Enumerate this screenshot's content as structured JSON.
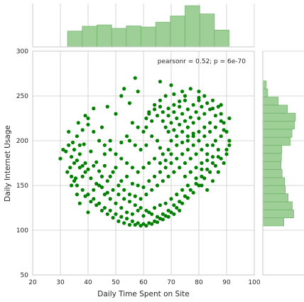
{
  "chart_data": {
    "type": "scatter",
    "title": "",
    "xlabel": "Daily Time Spent on Site",
    "ylabel": "Daily Internet Usage",
    "xlim": [
      20,
      100
    ],
    "ylim": [
      50,
      300
    ],
    "xticks": [
      20,
      30,
      40,
      50,
      60,
      70,
      80,
      90,
      100
    ],
    "yticks": [
      50,
      100,
      150,
      200,
      250,
      300
    ],
    "grid": true,
    "annotation": "pearsonr = 0.52; p = 6e-70",
    "colors": {
      "points": "#008000",
      "hist_fill": "#9dcf97",
      "hist_edge": "#6fb268",
      "grid": "#cccccc",
      "axes_edge": "#c8c8c8"
    },
    "marginal_x": {
      "bin_edges": [
        32.6,
        37.9,
        43.2,
        48.5,
        53.8,
        59.1,
        64.4,
        69.7,
        75.0,
        80.3,
        85.6,
        90.9
      ],
      "counts": [
        46,
        60,
        64,
        54,
        61,
        58,
        72,
        90,
        120,
        96,
        49
      ]
    },
    "marginal_y": {
      "bin_edges": [
        104.8,
        113.8,
        122.8,
        131.8,
        140.8,
        149.8,
        158.8,
        167.8,
        176.8,
        185.8,
        194.8,
        203.8,
        212.8,
        221.8,
        230.8,
        239.8,
        248.8,
        257.8,
        266.8
      ],
      "counts": [
        60,
        88,
        84,
        72,
        64,
        62,
        55,
        52,
        53,
        54,
        78,
        83,
        90,
        93,
        70,
        44,
        14,
        10
      ]
    },
    "series": [
      {
        "points": [
          [
            30,
            180
          ],
          [
            31,
            190
          ],
          [
            32,
            188
          ],
          [
            32.5,
            165
          ],
          [
            33,
            195
          ],
          [
            33.5,
            170
          ],
          [
            34,
            160
          ],
          [
            34.5,
            198
          ],
          [
            35,
            175
          ],
          [
            35.5,
            158
          ],
          [
            33,
            210
          ],
          [
            36,
            205
          ],
          [
            37,
            185
          ],
          [
            38,
            212
          ],
          [
            36.5,
            220
          ],
          [
            39,
            175
          ],
          [
            38.5,
            196
          ],
          [
            40,
            225
          ],
          [
            41,
            188
          ],
          [
            42,
            210
          ],
          [
            43,
            176
          ],
          [
            44,
            200
          ],
          [
            45,
            215
          ],
          [
            46,
            185
          ],
          [
            37,
            170
          ],
          [
            35,
            155
          ],
          [
            36,
            150
          ],
          [
            38,
            145
          ],
          [
            40,
            140
          ],
          [
            42,
            135
          ],
          [
            44,
            130
          ],
          [
            46,
            125
          ],
          [
            48,
            122
          ],
          [
            50,
            118
          ],
          [
            52,
            115
          ],
          [
            54,
            113
          ],
          [
            56,
            110
          ],
          [
            58,
            108
          ],
          [
            60,
            107
          ],
          [
            62,
            108
          ],
          [
            64,
            110
          ],
          [
            66,
            113
          ],
          [
            68,
            116
          ],
          [
            70,
            120
          ],
          [
            72,
            125
          ],
          [
            74,
            130
          ],
          [
            76,
            136
          ],
          [
            78,
            142
          ],
          [
            80,
            150
          ],
          [
            82,
            158
          ],
          [
            84,
            165
          ],
          [
            86,
            172
          ],
          [
            88,
            180
          ],
          [
            90,
            190
          ],
          [
            91,
            200
          ],
          [
            90,
            210
          ],
          [
            89,
            220
          ],
          [
            88,
            230
          ],
          [
            87,
            238
          ],
          [
            85,
            245
          ],
          [
            82,
            250
          ],
          [
            80,
            255
          ],
          [
            77,
            258
          ],
          [
            74,
            255
          ],
          [
            71,
            252
          ],
          [
            68,
            250
          ],
          [
            66,
            245
          ],
          [
            64,
            240
          ],
          [
            62,
            232
          ],
          [
            61,
            225
          ],
          [
            34,
            150
          ],
          [
            36,
            140
          ],
          [
            39,
            138
          ],
          [
            41,
            132
          ],
          [
            43,
            128
          ],
          [
            45,
            122
          ],
          [
            47,
            118
          ],
          [
            49,
            114
          ],
          [
            51,
            110
          ],
          [
            53,
            108
          ],
          [
            55,
            106
          ],
          [
            57,
            106
          ],
          [
            59,
            105
          ],
          [
            61,
            105
          ],
          [
            63,
            107
          ],
          [
            65,
            109
          ],
          [
            67,
            112
          ],
          [
            69,
            115
          ],
          [
            71,
            118
          ],
          [
            73,
            122
          ],
          [
            37,
            130
          ],
          [
            40,
            120
          ],
          [
            42,
            145
          ],
          [
            44,
            150
          ],
          [
            46,
            140
          ],
          [
            48,
            135
          ],
          [
            50,
            130
          ],
          [
            52,
            125
          ],
          [
            54,
            120
          ],
          [
            56,
            118
          ],
          [
            58,
            122
          ],
          [
            60,
            116
          ],
          [
            62,
            120
          ],
          [
            64,
            125
          ],
          [
            66,
            128
          ],
          [
            68,
            130
          ],
          [
            70,
            135
          ],
          [
            72,
            140
          ],
          [
            74,
            145
          ],
          [
            76,
            150
          ],
          [
            45,
            160
          ],
          [
            47,
            155
          ],
          [
            49,
            165
          ],
          [
            51,
            150
          ],
          [
            53,
            145
          ],
          [
            55,
            140
          ],
          [
            57,
            138
          ],
          [
            59,
            135
          ],
          [
            61,
            140
          ],
          [
            63,
            145
          ],
          [
            65,
            150
          ],
          [
            67,
            155
          ],
          [
            69,
            160
          ],
          [
            71,
            165
          ],
          [
            73,
            170
          ],
          [
            75,
            175
          ],
          [
            77,
            180
          ],
          [
            79,
            185
          ],
          [
            81,
            190
          ],
          [
            83,
            195
          ],
          [
            38,
            160
          ],
          [
            40,
            168
          ],
          [
            42,
            172
          ],
          [
            44,
            166
          ],
          [
            46,
            172
          ],
          [
            48,
            160
          ],
          [
            50,
            170
          ],
          [
            52,
            155
          ],
          [
            54,
            160
          ],
          [
            56,
            152
          ],
          [
            58,
            150
          ],
          [
            60,
            148
          ],
          [
            62,
            155
          ],
          [
            64,
            160
          ],
          [
            66,
            165
          ],
          [
            68,
            170
          ],
          [
            70,
            175
          ],
          [
            72,
            180
          ],
          [
            74,
            185
          ],
          [
            76,
            190
          ],
          [
            78,
            195
          ],
          [
            80,
            200
          ],
          [
            82,
            205
          ],
          [
            84,
            210
          ],
          [
            86,
            215
          ],
          [
            88,
            205
          ],
          [
            85,
            195
          ],
          [
            83,
            185
          ],
          [
            81,
            175
          ],
          [
            79,
            170
          ],
          [
            70,
            200
          ],
          [
            72,
            205
          ],
          [
            74,
            210
          ],
          [
            76,
            215
          ],
          [
            78,
            220
          ],
          [
            80,
            225
          ],
          [
            82,
            230
          ],
          [
            84,
            235
          ],
          [
            86,
            228
          ],
          [
            88,
            222
          ],
          [
            70,
            220
          ],
          [
            72,
            225
          ],
          [
            74,
            230
          ],
          [
            76,
            235
          ],
          [
            78,
            240
          ],
          [
            80,
            245
          ],
          [
            75,
            245
          ],
          [
            73,
            238
          ],
          [
            71,
            232
          ],
          [
            69,
            228
          ],
          [
            67,
            222
          ],
          [
            68,
            215
          ],
          [
            69,
            210
          ],
          [
            71,
            212
          ],
          [
            73,
            218
          ],
          [
            75,
            222
          ],
          [
            77,
            226
          ],
          [
            79,
            232
          ],
          [
            81,
            238
          ],
          [
            83,
            242
          ],
          [
            76,
            200
          ],
          [
            78,
            205
          ],
          [
            80,
            210
          ],
          [
            82,
            215
          ],
          [
            84,
            220
          ],
          [
            86,
            200
          ],
          [
            87,
            190
          ],
          [
            85,
            182
          ],
          [
            83,
            178
          ],
          [
            81,
            168
          ],
          [
            65,
            200
          ],
          [
            66,
            192
          ],
          [
            67,
            185
          ],
          [
            68,
            178
          ],
          [
            69,
            190
          ],
          [
            70,
            185
          ],
          [
            72,
            195
          ],
          [
            74,
            198
          ],
          [
            76,
            205
          ],
          [
            78,
            208
          ],
          [
            75,
            160
          ],
          [
            77,
            165
          ],
          [
            79,
            158
          ],
          [
            81,
            150
          ],
          [
            83,
            145
          ],
          [
            85,
            155
          ],
          [
            87,
            165
          ],
          [
            89,
            175
          ],
          [
            90,
            185
          ],
          [
            91,
            195
          ],
          [
            60,
            170
          ],
          [
            62,
            175
          ],
          [
            64,
            180
          ],
          [
            66,
            175
          ],
          [
            58,
            165
          ],
          [
            56,
            170
          ],
          [
            54,
            175
          ],
          [
            52,
            180
          ],
          [
            50,
            185
          ],
          [
            48,
            190
          ],
          [
            55,
            200
          ],
          [
            57,
            195
          ],
          [
            59,
            190
          ],
          [
            61,
            195
          ],
          [
            63,
            205
          ],
          [
            60,
            210
          ],
          [
            58,
            215
          ],
          [
            56,
            220
          ],
          [
            54,
            205
          ],
          [
            52,
            198
          ],
          [
            62,
            230
          ],
          [
            64,
            235
          ],
          [
            66,
            238
          ],
          [
            65,
            228
          ],
          [
            63,
            222
          ],
          [
            61,
            215
          ],
          [
            67,
            232
          ],
          [
            69,
            236
          ],
          [
            71,
            240
          ],
          [
            73,
            244
          ],
          [
            52,
            250
          ],
          [
            55,
            242
          ],
          [
            58,
            255
          ],
          [
            50,
            230
          ],
          [
            47,
            238
          ],
          [
            42,
            236
          ],
          [
            40,
            218
          ],
          [
            39,
            228
          ],
          [
            48,
            200
          ],
          [
            46,
            195
          ],
          [
            57,
            270
          ],
          [
            53,
            258
          ],
          [
            66,
            266
          ],
          [
            70,
            262
          ],
          [
            75,
            250
          ],
          [
            80,
            248
          ],
          [
            85,
            236
          ],
          [
            88,
            240
          ],
          [
            91,
            225
          ],
          [
            89,
            212
          ],
          [
            35,
            190
          ],
          [
            34,
            182
          ],
          [
            36,
            178
          ],
          [
            37,
            195
          ],
          [
            38,
            172
          ],
          [
            39,
            165
          ],
          [
            41,
            158
          ],
          [
            43,
            152
          ],
          [
            45,
            148
          ],
          [
            47,
            142
          ],
          [
            49,
            145
          ],
          [
            51,
            140
          ],
          [
            53,
            135
          ],
          [
            55,
            132
          ],
          [
            57,
            128
          ],
          [
            59,
            125
          ],
          [
            61,
            122
          ],
          [
            63,
            118
          ],
          [
            65,
            115
          ],
          [
            67,
            118
          ],
          [
            69,
            122
          ],
          [
            71,
            128
          ],
          [
            73,
            132
          ],
          [
            75,
            138
          ],
          [
            77,
            145
          ],
          [
            79,
            152
          ],
          [
            81,
            160
          ],
          [
            83,
            168
          ],
          [
            85,
            175
          ],
          [
            87,
            182
          ]
        ]
      }
    ]
  }
}
